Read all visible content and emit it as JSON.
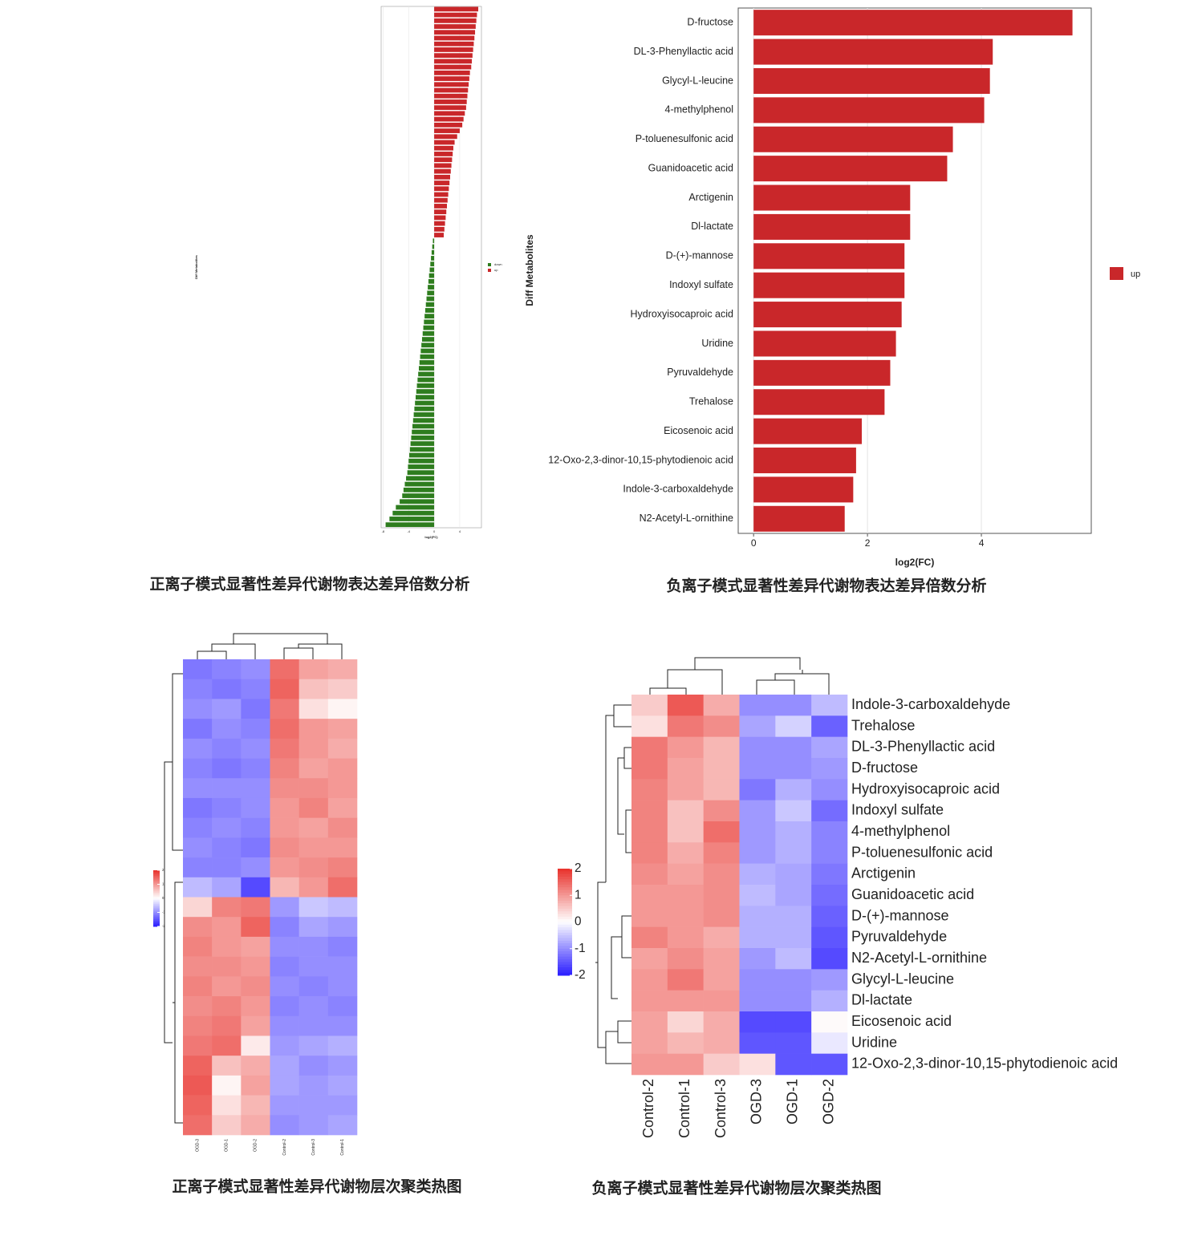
{
  "chart_data": [
    {
      "type": "diverging-bar",
      "caption": "正离子模式显著性差异代谢物表达差异倍数分析",
      "ylabel": "Diff Metabolites",
      "xlabel": "log2(FC)",
      "xlim": [
        -8.3,
        7.4
      ],
      "xticks": [
        -8,
        -4,
        0,
        4
      ],
      "grid": true,
      "legend": "right",
      "series": [
        {
          "name": "down",
          "color": "#2e7d1e",
          "values": [
            -0.2,
            -0.3,
            -0.4,
            -0.5,
            -0.6,
            -0.7,
            -0.8,
            -0.9,
            -1.0,
            -1.1,
            -1.2,
            -1.3,
            -1.4,
            -1.5,
            -1.6,
            -1.7,
            -1.8,
            -1.9,
            -2.0,
            -2.1,
            -2.2,
            -2.3,
            -2.4,
            -2.5,
            -2.6,
            -2.7,
            -2.8,
            -2.9,
            -3.0,
            -3.1,
            -3.2,
            -3.3,
            -3.4,
            -3.5,
            -3.6,
            -3.7,
            -3.8,
            -3.9,
            -4.0,
            -4.1,
            -4.2,
            -4.4,
            -4.6,
            -4.8,
            -5.0,
            -5.4,
            -6.0,
            -6.5,
            -7.0,
            -7.6
          ]
        },
        {
          "name": "up",
          "color": "#c9272a",
          "values": [
            6.9,
            6.7,
            6.6,
            6.5,
            6.4,
            6.3,
            6.2,
            6.1,
            6.0,
            5.9,
            5.8,
            5.6,
            5.5,
            5.4,
            5.3,
            5.2,
            5.1,
            5.0,
            4.8,
            4.6,
            4.4,
            4.0,
            3.6,
            3.2,
            3.0,
            2.9,
            2.8,
            2.7,
            2.6,
            2.5,
            2.4,
            2.3,
            2.2,
            2.1,
            2.0,
            1.9,
            1.8,
            1.7,
            1.6,
            1.5
          ]
        }
      ]
    },
    {
      "type": "hbar",
      "caption": "负离子模式显著性差异代谢物表达差异倍数分析",
      "ylabel": "Diff Metabolites",
      "xlabel": "log2(FC)",
      "xlim": [
        -0.27,
        5.93
      ],
      "xticks": [
        0,
        2,
        4
      ],
      "grid": true,
      "legend": "right",
      "series": [
        {
          "name": "up",
          "color": "#c9272a"
        }
      ],
      "categories": [
        "D-fructose",
        "DL-3-Phenyllactic acid",
        "Glycyl-L-leucine",
        "4-methylphenol",
        "P-toluenesulfonic acid",
        "Guanidoacetic acid",
        "Arctigenin",
        "Dl-lactate",
        "D-(+)-mannose",
        "Indoxyl sulfate",
        "Hydroxyisocaproic acid",
        "Uridine",
        "Pyruvaldehyde",
        "Trehalose",
        "Eicosenoic acid",
        "12-Oxo-2,3-dinor-10,15-phytodienoic acid",
        "Indole-3-carboxaldehyde",
        "N2-Acetyl-L-ornithine"
      ],
      "values": [
        5.6,
        4.2,
        4.15,
        4.05,
        3.5,
        3.4,
        2.75,
        2.75,
        2.65,
        2.65,
        2.6,
        2.5,
        2.4,
        2.3,
        1.9,
        1.8,
        1.75,
        1.6
      ]
    },
    {
      "type": "heatmap",
      "caption": "正离子模式显著性差异代谢物层次聚类热图",
      "columns": [
        "OGD-3",
        "OGD-1",
        "OGD-2",
        "Control-2",
        "Control-3",
        "Control-1"
      ],
      "colors": [
        "#2a1dff",
        "#ffffff",
        "#e8302a"
      ],
      "zlim": [
        -2,
        2
      ],
      "zticks": [
        2,
        1,
        0,
        -1,
        -2
      ],
      "values": [
        [
          -1.2,
          -1.1,
          -1.0,
          1.4,
          0.9,
          0.8
        ],
        [
          -1.1,
          -1.2,
          -1.1,
          1.5,
          0.6,
          0.5
        ],
        [
          -1.0,
          -0.9,
          -1.2,
          1.3,
          0.3,
          0.1
        ],
        [
          -1.2,
          -1.0,
          -1.1,
          1.4,
          1.0,
          0.9
        ],
        [
          -1.0,
          -1.1,
          -1.0,
          1.3,
          1.0,
          0.8
        ],
        [
          -1.1,
          -1.2,
          -1.1,
          1.2,
          0.9,
          1.0
        ],
        [
          -1.0,
          -1.0,
          -1.0,
          1.1,
          1.1,
          1.0
        ],
        [
          -1.2,
          -1.1,
          -1.0,
          1.0,
          1.2,
          0.9
        ],
        [
          -1.1,
          -1.0,
          -1.1,
          1.0,
          0.9,
          1.1
        ],
        [
          -1.0,
          -1.1,
          -1.2,
          1.1,
          1.0,
          1.0
        ],
        [
          -1.1,
          -1.1,
          -1.0,
          1.0,
          1.1,
          1.2
        ],
        [
          -0.6,
          -0.8,
          -1.6,
          0.7,
          1.0,
          1.4
        ],
        [
          0.4,
          1.2,
          1.3,
          -0.9,
          -0.5,
          -0.6
        ],
        [
          1.1,
          1.0,
          1.5,
          -1.1,
          -0.8,
          -0.9
        ],
        [
          1.2,
          1.0,
          0.9,
          -1.0,
          -1.0,
          -1.1
        ],
        [
          1.1,
          1.1,
          1.0,
          -1.1,
          -1.0,
          -1.0
        ],
        [
          1.2,
          1.0,
          1.1,
          -1.0,
          -1.1,
          -1.0
        ],
        [
          1.1,
          1.2,
          1.0,
          -1.1,
          -1.0,
          -1.1
        ],
        [
          1.2,
          1.3,
          0.9,
          -1.0,
          -1.0,
          -1.0
        ],
        [
          1.3,
          1.4,
          0.2,
          -0.9,
          -0.8,
          -0.7
        ],
        [
          1.5,
          0.6,
          0.8,
          -0.8,
          -1.0,
          -0.9
        ],
        [
          1.6,
          0.1,
          0.9,
          -0.8,
          -0.9,
          -0.8
        ],
        [
          1.5,
          0.3,
          0.7,
          -0.9,
          -0.9,
          -0.9
        ],
        [
          1.4,
          0.5,
          0.8,
          -1.0,
          -0.9,
          -0.8
        ]
      ]
    },
    {
      "type": "heatmap",
      "caption": "负离子模式显著性差异代谢物层次聚类热图",
      "columns": [
        "Control-2",
        "Control-1",
        "Control-3",
        "OGD-3",
        "OGD-1",
        "OGD-2"
      ],
      "rows": [
        "Indole-3-carboxaldehyde",
        "Trehalose",
        "DL-3-Phenyllactic acid",
        "D-fructose",
        "Hydroxyisocaproic acid",
        "Indoxyl sulfate",
        "4-methylphenol",
        "P-toluenesulfonic acid",
        "Arctigenin",
        "Guanidoacetic acid",
        "D-(+)-mannose",
        "Pyruvaldehyde",
        "N2-Acetyl-L-ornithine",
        "Glycyl-L-leucine",
        "Dl-lactate",
        "Eicosenoic acid",
        "Uridine",
        "12-Oxo-2,3-dinor-10,15-phytodienoic acid"
      ],
      "colors": [
        "#2a1dff",
        "#ffffff",
        "#e8302a"
      ],
      "zlim": [
        -2,
        2
      ],
      "zticks": [
        2,
        1,
        0,
        -1,
        -2
      ],
      "values": [
        [
          0.5,
          1.6,
          0.8,
          -1.0,
          -1.0,
          -0.6
        ],
        [
          0.3,
          1.3,
          1.1,
          -0.8,
          -0.4,
          -1.4
        ],
        [
          1.3,
          1.0,
          0.7,
          -1.0,
          -1.0,
          -0.8
        ],
        [
          1.3,
          0.9,
          0.7,
          -1.0,
          -1.0,
          -0.9
        ],
        [
          1.2,
          0.9,
          0.7,
          -1.2,
          -0.7,
          -1.0
        ],
        [
          1.2,
          0.6,
          1.1,
          -0.9,
          -0.5,
          -1.3
        ],
        [
          1.2,
          0.6,
          1.4,
          -0.9,
          -0.7,
          -1.1
        ],
        [
          1.2,
          0.8,
          1.2,
          -0.9,
          -0.7,
          -1.1
        ],
        [
          1.1,
          0.9,
          1.1,
          -0.7,
          -0.8,
          -1.2
        ],
        [
          1.0,
          1.0,
          1.1,
          -0.6,
          -0.8,
          -1.3
        ],
        [
          1.0,
          1.0,
          1.1,
          -0.7,
          -0.7,
          -1.4
        ],
        [
          1.2,
          1.0,
          0.8,
          -0.7,
          -0.7,
          -1.5
        ],
        [
          0.9,
          1.1,
          0.9,
          -0.9,
          -0.6,
          -1.6
        ],
        [
          1.0,
          1.3,
          0.9,
          -1.0,
          -1.0,
          -0.9
        ],
        [
          1.0,
          1.0,
          1.0,
          -1.0,
          -1.0,
          -0.7
        ],
        [
          0.9,
          0.4,
          0.8,
          -1.6,
          -1.6,
          0.05
        ],
        [
          0.9,
          0.7,
          0.8,
          -1.5,
          -1.5,
          -0.2
        ],
        [
          1.0,
          1.0,
          0.5,
          0.3,
          -1.5,
          -1.5
        ]
      ]
    }
  ]
}
